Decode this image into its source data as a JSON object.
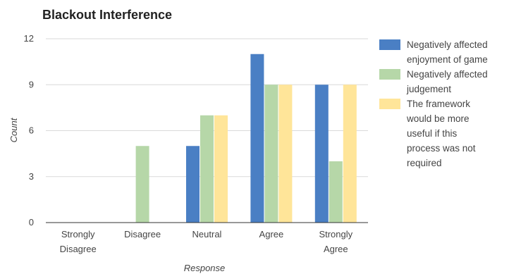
{
  "chart_data": {
    "type": "bar",
    "title": "Blackout Interference",
    "xlabel": "Response",
    "ylabel": "Count",
    "ylim": [
      0,
      12
    ],
    "yticks": [
      0,
      3,
      6,
      9,
      12
    ],
    "grid": true,
    "legend_position": "right",
    "categories": [
      "Strongly Disagree",
      "Disagree",
      "Neutral",
      "Agree",
      "Strongly Agree"
    ],
    "category_lines": [
      [
        "Strongly",
        "Disagree"
      ],
      [
        "Disagree"
      ],
      [
        "Neutral"
      ],
      [
        "Agree"
      ],
      [
        "Strongly",
        "Agree"
      ]
    ],
    "series": [
      {
        "name": "Negatively affected enjoyment of game",
        "legend_lines": [
          "Negatively affected",
          "enjoyment of game"
        ],
        "color": "#4a7fc4",
        "values": [
          0,
          0,
          5,
          11,
          9
        ]
      },
      {
        "name": "Negatively affected judgement",
        "legend_lines": [
          "Negatively affected",
          "judgement"
        ],
        "color": "#b6d7a8",
        "values": [
          0,
          5,
          7,
          9,
          4
        ]
      },
      {
        "name": "The framework would be more useful if this process was not required",
        "legend_lines": [
          "The framework",
          "would be more",
          "useful if this",
          "process was not",
          "required"
        ],
        "color": "#ffe599",
        "values": [
          0,
          0,
          7,
          9,
          9
        ]
      }
    ]
  }
}
